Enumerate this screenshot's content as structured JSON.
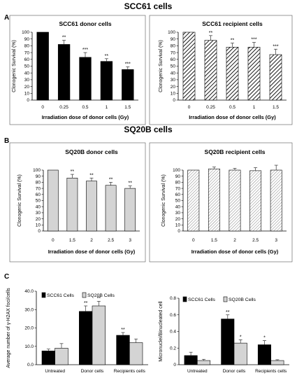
{
  "sections": [
    {
      "label": "A",
      "title": "SCC61 cells"
    },
    {
      "label": "B",
      "title": "SQ20B cells"
    },
    {
      "label": "C",
      "title": ""
    }
  ],
  "chart_data": [
    {
      "type": "bar",
      "title": "SCC61 donor cells",
      "xlabel": "Irradiation dose of donor cells (Gy)",
      "ylabel": "Clonogenic Survival (%)",
      "ylim": [
        0,
        100
      ],
      "yticks": [
        0,
        10,
        20,
        30,
        40,
        50,
        60,
        70,
        80,
        90,
        100
      ],
      "categories": [
        "0",
        "0.25",
        "0.5",
        "1",
        "1.5"
      ],
      "values": [
        100,
        82,
        63,
        57,
        45
      ],
      "errors": [
        0,
        6,
        7,
        4,
        4
      ],
      "annotations": [
        "",
        "**",
        "***",
        "**",
        "***"
      ],
      "fill": "#000000"
    },
    {
      "type": "bar",
      "title": "SCC61 recipient cells",
      "xlabel": "Irradiation dose of donor cells (Gy)",
      "ylabel": "Clonogenic Survival (%)",
      "ylim": [
        0,
        100
      ],
      "yticks": [
        0,
        10,
        20,
        30,
        40,
        50,
        60,
        70,
        80,
        90,
        100
      ],
      "categories": [
        "0",
        "0.25",
        "0.5",
        "1",
        "1.5"
      ],
      "values": [
        100,
        88,
        78,
        78,
        67
      ],
      "errors": [
        0,
        7,
        6,
        7,
        8
      ],
      "annotations": [
        "",
        "**",
        "**",
        "***",
        "***"
      ],
      "fill": "hatch"
    },
    {
      "type": "bar",
      "title": "SQ20B donor cells",
      "xlabel": "Irradiation dose of donor cells (Gy)",
      "ylabel": "Clonogenic Survival (%)",
      "ylim": [
        0,
        100
      ],
      "yticks": [
        0,
        10,
        20,
        30,
        40,
        50,
        60,
        70,
        80,
        90,
        100
      ],
      "categories": [
        "0",
        "1.5",
        "2",
        "2.5",
        "3"
      ],
      "values": [
        100,
        87,
        82,
        75,
        70
      ],
      "errors": [
        0,
        6,
        5,
        5,
        4
      ],
      "annotations": [
        "",
        "**",
        "**",
        "**",
        "**"
      ],
      "fill": "#d4d4d4"
    },
    {
      "type": "bar",
      "title": "SQ20B recipient cells",
      "xlabel": "Irradiation dose of donor cells (Gy)",
      "ylabel": "Clonogenic Survival (%)",
      "ylim": [
        0,
        100
      ],
      "yticks": [
        0,
        10,
        20,
        30,
        40,
        50,
        60,
        70,
        80,
        90,
        100
      ],
      "categories": [
        "0",
        "1.5",
        "2",
        "2.5",
        "3"
      ],
      "values": [
        100,
        102,
        100,
        99,
        100
      ],
      "errors": [
        0,
        3,
        3,
        5,
        8
      ],
      "annotations": [
        "",
        "",
        "",
        "",
        ""
      ],
      "fill": "hatch-light"
    },
    {
      "type": "bar",
      "title": "",
      "xlabel": "",
      "ylabel": "Average number of γ-H2AX foci/cells",
      "ylim": [
        0,
        40
      ],
      "yticks": [
        0,
        10,
        20,
        30,
        40
      ],
      "ytick_labels": [
        "0.0",
        "10.0",
        "20.0",
        "30.0",
        "40.0"
      ],
      "categories": [
        "Untreated",
        "Donor cells",
        "Recipients cells"
      ],
      "series": [
        {
          "name": "SCC61 Cells",
          "values": [
            7.5,
            29,
            16
          ],
          "errors": [
            1,
            3,
            1.5
          ],
          "annotations": [
            "",
            "**",
            "**"
          ],
          "fill": "#000000"
        },
        {
          "name": "SQ20B Cells",
          "values": [
            9,
            32,
            12
          ],
          "errors": [
            2.5,
            2.5,
            2
          ],
          "annotations": [
            "",
            "**",
            ""
          ],
          "fill": "#d4d4d4"
        }
      ],
      "legend": "top"
    },
    {
      "type": "bar",
      "title": "",
      "xlabel": "",
      "ylabel": "Micronuclei/Binucleated cell",
      "ylim": [
        0,
        0.8
      ],
      "yticks": [
        0,
        0.2,
        0.4,
        0.6,
        0.8
      ],
      "ytick_labels": [
        "0",
        "0.2",
        "0.4",
        "0.6",
        "0.8"
      ],
      "categories": [
        "Untreated",
        "Donor cells",
        "Recipients cells"
      ],
      "series": [
        {
          "name": "SCC61 Cells",
          "values": [
            0.11,
            0.55,
            0.24
          ],
          "errors": [
            0.04,
            0.05,
            0.05
          ],
          "annotations": [
            "",
            "**",
            "*"
          ],
          "fill": "#000000"
        },
        {
          "name": "SQ20B Cells",
          "values": [
            0.05,
            0.26,
            0.05
          ],
          "errors": [
            0.015,
            0.04,
            0.01
          ],
          "annotations": [
            "",
            "*",
            ""
          ],
          "fill": "#d4d4d4"
        }
      ],
      "legend": "top"
    }
  ]
}
